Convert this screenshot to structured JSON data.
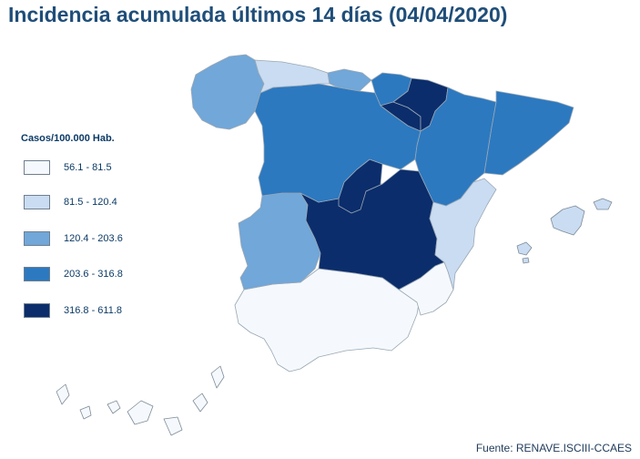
{
  "title": "Incidencia acumulada últimos 14 días (04/04/2020)",
  "legend": {
    "title": "Casos/100.000 Hab.",
    "items": [
      {
        "label": "56.1 - 81.5",
        "color": "#f5f9fd"
      },
      {
        "label": "81.5 - 120.4",
        "color": "#c9dcf1"
      },
      {
        "label": "120.4 - 203.6",
        "color": "#71a7d9"
      },
      {
        "label": "203.6 - 316.8",
        "color": "#2c79c0"
      },
      {
        "label": "316.8 - 611.8",
        "color": "#0b2d6b"
      }
    ]
  },
  "source": "Fuente: RENAVE.ISCIII-CCAES",
  "regions": [
    {
      "id": "galicia",
      "class": 2
    },
    {
      "id": "asturias",
      "class": 1
    },
    {
      "id": "cantabria",
      "class": 2
    },
    {
      "id": "pais-vasco",
      "class": 3
    },
    {
      "id": "navarra",
      "class": 4
    },
    {
      "id": "la-rioja",
      "class": 4
    },
    {
      "id": "castilla-leon",
      "class": 3
    },
    {
      "id": "aragon",
      "class": 3
    },
    {
      "id": "cataluna",
      "class": 3
    },
    {
      "id": "madrid",
      "class": 4
    },
    {
      "id": "castilla-la-mancha",
      "class": 4
    },
    {
      "id": "extremadura",
      "class": 2
    },
    {
      "id": "comunidad-valenciana",
      "class": 1
    },
    {
      "id": "andalucia",
      "class": 0
    },
    {
      "id": "murcia",
      "class": 0
    },
    {
      "id": "baleares",
      "class": 1
    },
    {
      "id": "canarias",
      "class": 0
    }
  ]
}
